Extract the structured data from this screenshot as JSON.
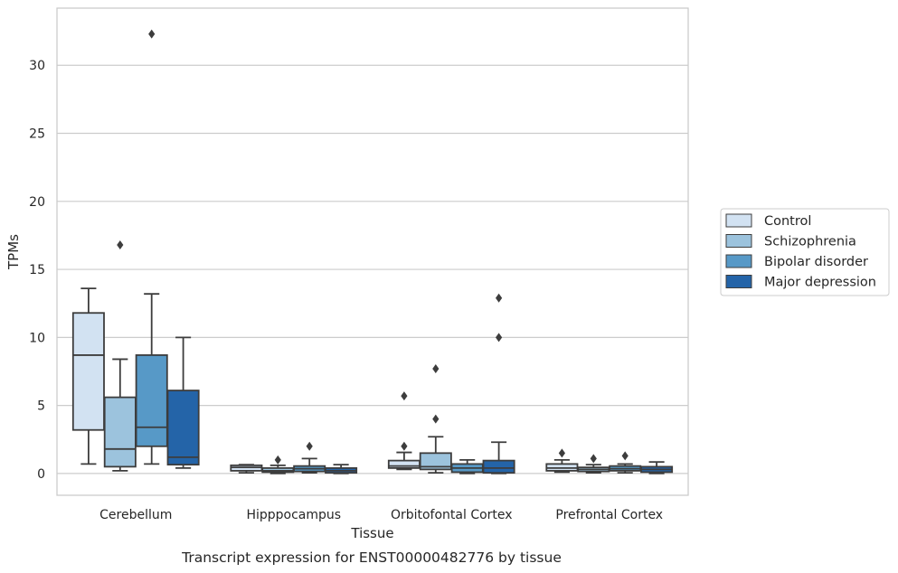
{
  "chart_data": {
    "type": "box",
    "title": "",
    "caption": "Transcript expression for ENST00000482776 by tissue",
    "xlabel": "Tissue",
    "ylabel": "TPMs",
    "ylim": [
      -1.6,
      34.2
    ],
    "yticks": [
      0,
      5,
      10,
      15,
      20,
      25,
      30
    ],
    "grid": "horizontal",
    "legend_position": "right",
    "categories": [
      "Cerebellum",
      "Hipppocampus",
      "Orbitofontal Cortex",
      "Prefrontal Cortex"
    ],
    "series": [
      {
        "name": "Control",
        "color": "#d2e2f2",
        "boxes": [
          {
            "whisker_low": 0.7,
            "q1": 3.2,
            "median": 8.7,
            "q3": 11.8,
            "whisker_high": 13.6,
            "outliers": []
          },
          {
            "whisker_low": 0.05,
            "q1": 0.2,
            "median": 0.45,
            "q3": 0.6,
            "whisker_high": 0.65,
            "outliers": []
          },
          {
            "whisker_low": 0.3,
            "q1": 0.4,
            "median": 0.55,
            "q3": 0.95,
            "whisker_high": 1.55,
            "outliers": [
              2.0,
              5.7
            ]
          },
          {
            "whisker_low": 0.1,
            "q1": 0.2,
            "median": 0.4,
            "q3": 0.7,
            "whisker_high": 1.0,
            "outliers": [
              1.5
            ]
          }
        ]
      },
      {
        "name": "Schizophrenia",
        "color": "#9cc3dd",
        "boxes": [
          {
            "whisker_low": 0.2,
            "q1": 0.5,
            "median": 1.8,
            "q3": 5.6,
            "whisker_high": 8.4,
            "outliers": [
              16.8
            ]
          },
          {
            "whisker_low": 0.0,
            "q1": 0.1,
            "median": 0.2,
            "q3": 0.4,
            "whisker_high": 0.6,
            "outliers": [
              1.0
            ]
          },
          {
            "whisker_low": 0.05,
            "q1": 0.3,
            "median": 0.5,
            "q3": 1.5,
            "whisker_high": 2.7,
            "outliers": [
              4.0,
              7.7
            ]
          },
          {
            "whisker_low": 0.05,
            "q1": 0.15,
            "median": 0.3,
            "q3": 0.45,
            "whisker_high": 0.65,
            "outliers": [
              1.1
            ]
          }
        ]
      },
      {
        "name": "Bipolar disorder",
        "color": "#5799c7",
        "boxes": [
          {
            "whisker_low": 0.7,
            "q1": 2.0,
            "median": 3.4,
            "q3": 8.7,
            "whisker_high": 13.2,
            "outliers": [
              32.3
            ]
          },
          {
            "whisker_low": 0.05,
            "q1": 0.15,
            "median": 0.35,
            "q3": 0.55,
            "whisker_high": 1.1,
            "outliers": [
              2.0
            ]
          },
          {
            "whisker_low": 0.0,
            "q1": 0.1,
            "median": 0.4,
            "q3": 0.7,
            "whisker_high": 1.0,
            "outliers": []
          },
          {
            "whisker_low": 0.05,
            "q1": 0.2,
            "median": 0.35,
            "q3": 0.55,
            "whisker_high": 0.7,
            "outliers": [
              1.3
            ]
          }
        ]
      },
      {
        "name": "Major depression",
        "color": "#2464a8",
        "boxes": [
          {
            "whisker_low": 0.4,
            "q1": 0.65,
            "median": 1.2,
            "q3": 6.1,
            "whisker_high": 10.0,
            "outliers": []
          },
          {
            "whisker_low": 0.0,
            "q1": 0.05,
            "median": 0.2,
            "q3": 0.4,
            "whisker_high": 0.65,
            "outliers": []
          },
          {
            "whisker_low": 0.0,
            "q1": 0.05,
            "median": 0.4,
            "q3": 0.95,
            "whisker_high": 2.3,
            "outliers": [
              10.0,
              12.9
            ]
          },
          {
            "whisker_low": 0.0,
            "q1": 0.1,
            "median": 0.3,
            "q3": 0.5,
            "whisker_high": 0.85,
            "outliers": []
          }
        ]
      }
    ]
  }
}
